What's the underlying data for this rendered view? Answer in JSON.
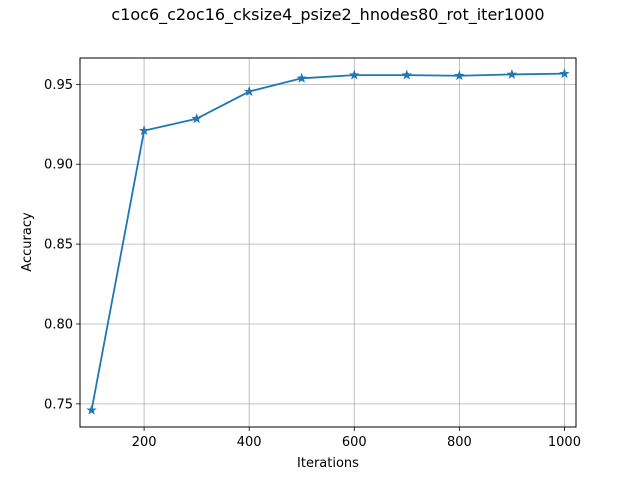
{
  "chart_data": {
    "type": "line",
    "title": "c1oc6_c2oc16_cksize4_psize2_hnodes80_rot_iter1000",
    "xlabel": "Iterations",
    "ylabel": "Accuracy",
    "xlim": [
      78,
      1022
    ],
    "ylim": [
      0.7355,
      0.9665
    ],
    "xticks": [
      200,
      400,
      600,
      800,
      1000
    ],
    "xtick_labels": [
      "200",
      "400",
      "600",
      "800",
      "1000"
    ],
    "yticks": [
      0.75,
      0.8,
      0.85,
      0.9,
      0.95
    ],
    "ytick_labels": [
      "0.75",
      "0.80",
      "0.85",
      "0.90",
      "0.95"
    ],
    "grid": true,
    "marker": "star",
    "color": "#1f77b4",
    "x": [
      100,
      200,
      300,
      400,
      500,
      600,
      700,
      800,
      900,
      1000
    ],
    "series": [
      {
        "values": [
          0.746,
          0.921,
          0.9285,
          0.9455,
          0.9538,
          0.9558,
          0.9558,
          0.9554,
          0.9562,
          0.9567
        ]
      }
    ]
  }
}
